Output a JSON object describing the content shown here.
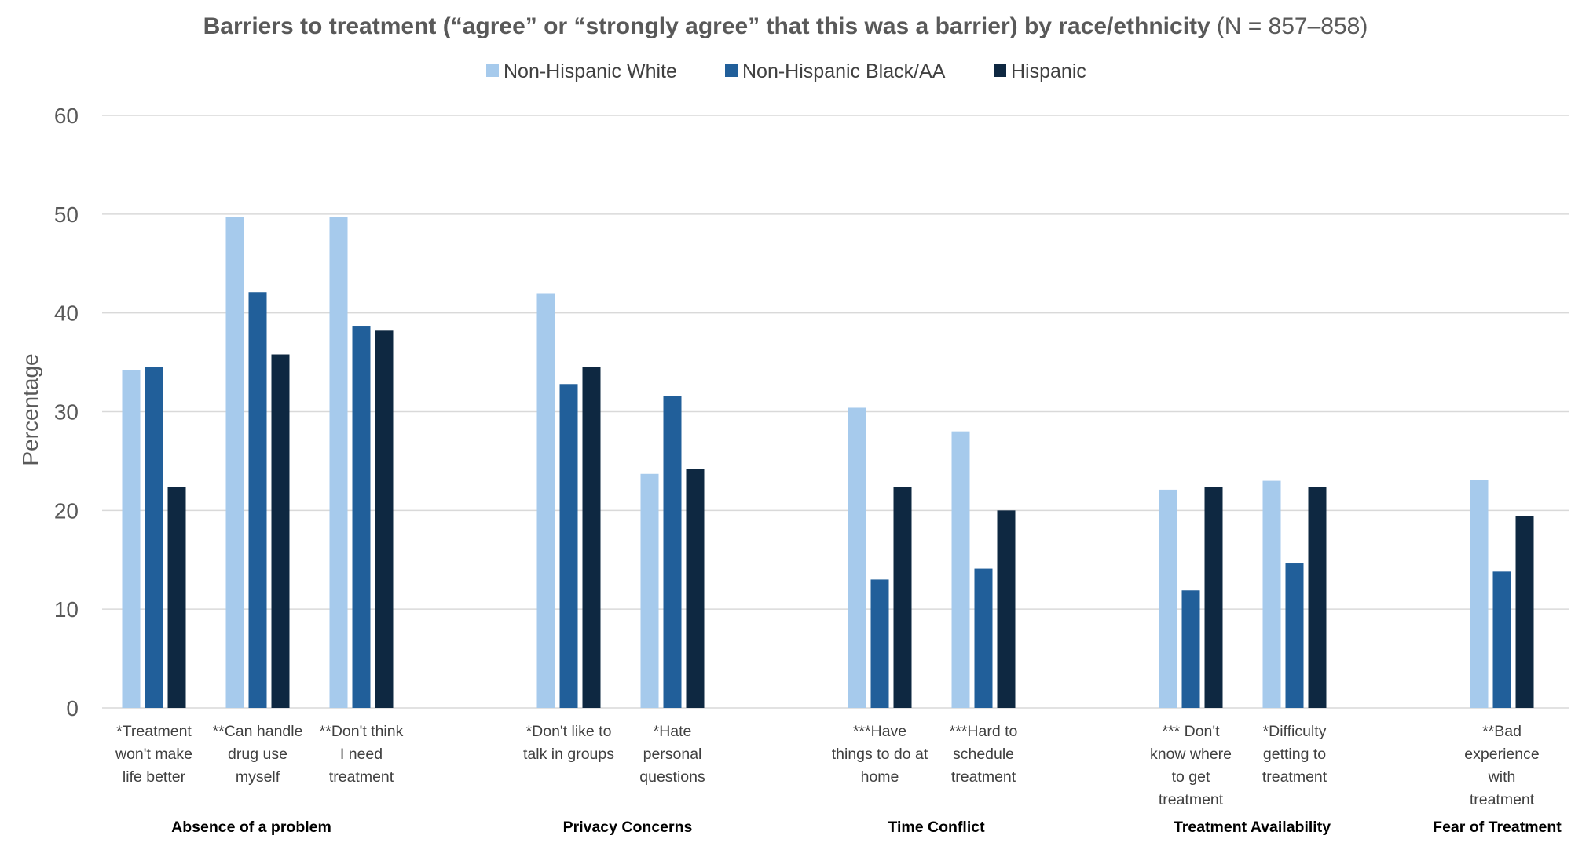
{
  "chart_data": {
    "type": "bar",
    "title": "Barriers to treatment (“agree” or “strongly agree” that this was a barrier) by race/ethnicity",
    "subtitle": "(N = 857–858)",
    "xlabel": "",
    "ylabel": "Percentage",
    "ylim": [
      0,
      60
    ],
    "yticks": [
      0,
      10,
      20,
      30,
      40,
      50,
      60
    ],
    "grid": true,
    "legend_position": "top",
    "categories": [
      [
        "*Treatment",
        "won't make",
        "life better"
      ],
      [
        "**Can handle",
        "drug use",
        "myself"
      ],
      [
        "**Don't think",
        "I need",
        "treatment"
      ],
      [
        "*Don't like to",
        "talk in groups"
      ],
      [
        "*Hate",
        "personal",
        "questions"
      ],
      [
        "***Have",
        "things to do at",
        "home"
      ],
      [
        "***Hard to",
        "schedule",
        "treatment"
      ],
      [
        "*** Don't",
        "know where",
        "to get",
        "treatment"
      ],
      [
        "*Difficulty",
        "getting to",
        "treatment"
      ],
      [
        "**Bad",
        "experience",
        "with",
        "treatment"
      ]
    ],
    "groups": [
      {
        "label": "Absence of a problem",
        "categories": [
          0,
          1,
          2
        ]
      },
      {
        "label": "Privacy Concerns",
        "categories": [
          3,
          4
        ]
      },
      {
        "label": "Time Conflict",
        "categories": [
          5,
          6
        ]
      },
      {
        "label": "Treatment Availability",
        "categories": [
          7,
          8
        ]
      },
      {
        "label": "Fear of Treatment",
        "categories": [
          9
        ]
      }
    ],
    "series": [
      {
        "name": "Non-Hispanic White",
        "color": "#a6caec",
        "values": [
          34.2,
          49.7,
          49.7,
          42.0,
          23.7,
          30.4,
          28.0,
          22.1,
          23.0,
          23.1
        ]
      },
      {
        "name": "Non-Hispanic Black/AA",
        "color": "#215f9a",
        "values": [
          34.5,
          42.1,
          38.7,
          32.8,
          31.6,
          13.0,
          14.1,
          11.9,
          14.7,
          13.8
        ]
      },
      {
        "name": "Hispanic",
        "color": "#0e2841",
        "values": [
          22.4,
          35.8,
          38.2,
          34.5,
          24.2,
          22.4,
          20.0,
          22.4,
          22.4,
          19.4
        ]
      }
    ]
  }
}
